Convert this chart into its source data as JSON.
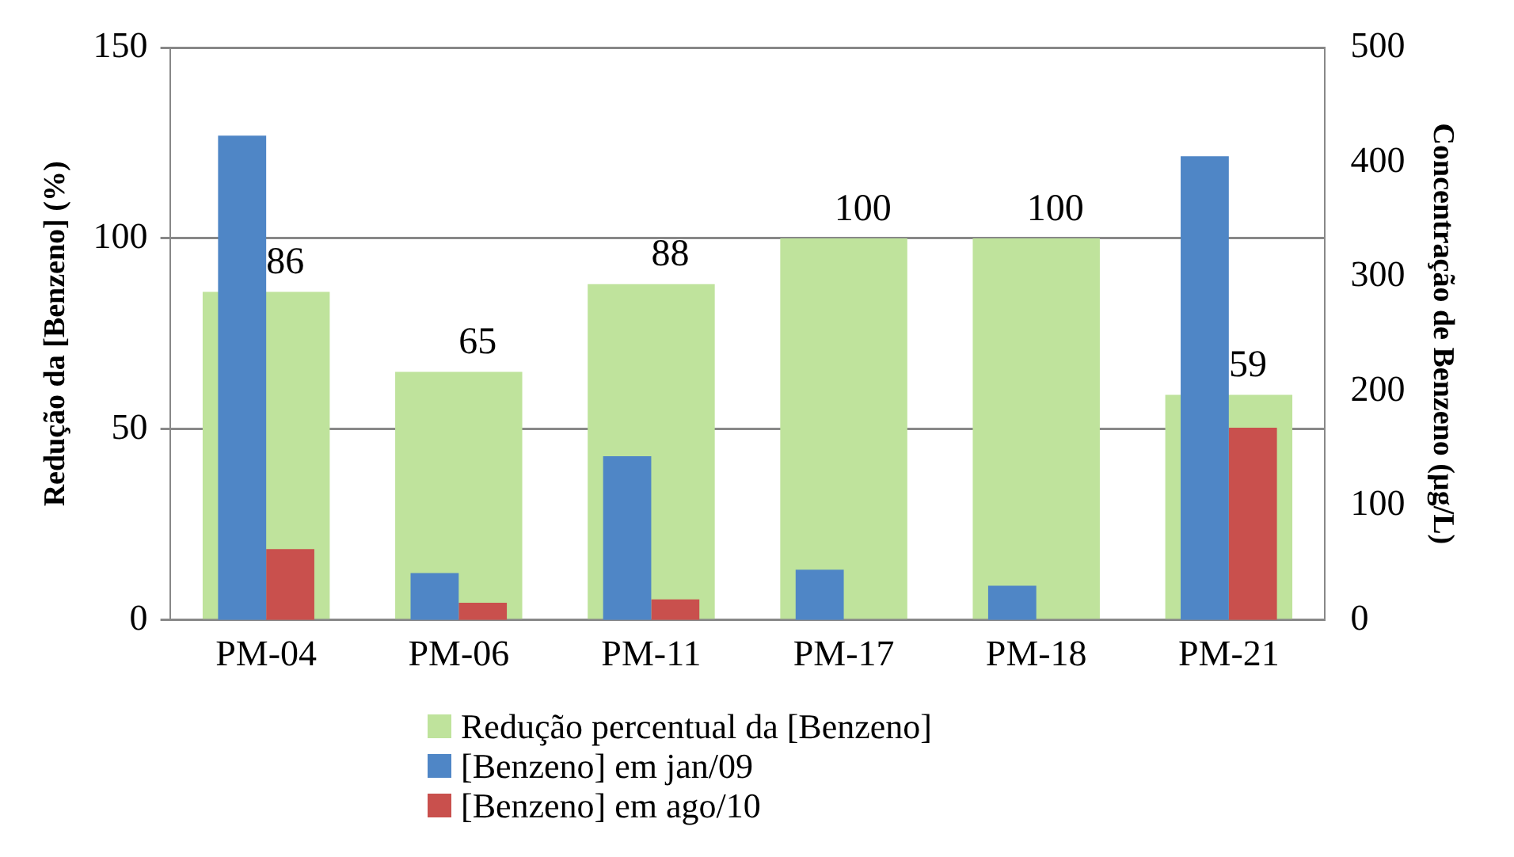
{
  "chart_data": {
    "type": "bar",
    "ylabel": "Redução da [Benzeno] (%)",
    "y2label": "Concentração de Benzeno (µg/L)",
    "categories": [
      "PM-04",
      "PM-06",
      "PM-11",
      "PM-17",
      "PM-18",
      "PM-21"
    ],
    "series": [
      {
        "name": "Redução percentual da [Benzeno]",
        "color": "#bfe39c",
        "values": [
          86,
          65,
          88,
          100,
          100,
          59
        ],
        "value_labels": [
          "86",
          "65",
          "88",
          "100",
          "100",
          "59"
        ]
      },
      {
        "name": "[Benzeno] em jan/09",
        "color": "#4f86c6",
        "values": [
          423,
          41,
          143,
          44,
          30,
          405
        ],
        "axis": "y2"
      },
      {
        "name": "[Benzeno] em ago/10",
        "color": "#c9504d",
        "values": [
          62,
          15,
          18,
          null,
          null,
          168
        ],
        "axis": "y2"
      }
    ],
    "ylim": [
      0,
      150
    ],
    "yticks": [
      0,
      50,
      100,
      150
    ],
    "y2lim": [
      0,
      500
    ],
    "y2ticks": [
      0,
      100,
      200,
      300,
      400,
      500
    ],
    "grid": "y",
    "legend": "bottom"
  }
}
